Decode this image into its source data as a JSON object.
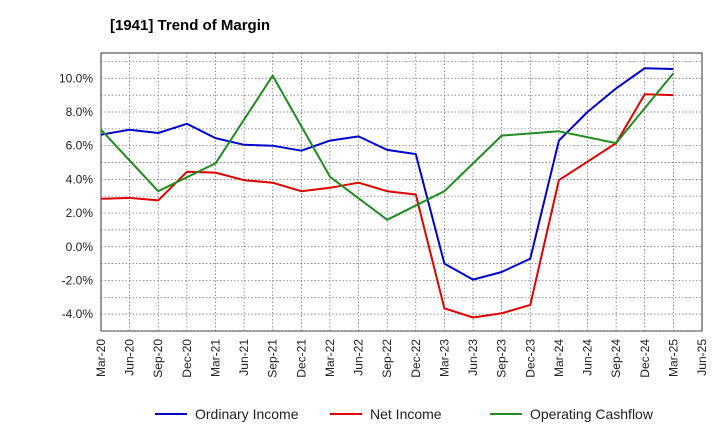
{
  "chart_data": {
    "type": "line",
    "title": "[1941]  Trend of Margin",
    "xlabel": "",
    "ylabel": "",
    "x": [
      "Mar-20",
      "Jun-20",
      "Sep-20",
      "Dec-20",
      "Mar-21",
      "Jun-21",
      "Sep-21",
      "Dec-21",
      "Mar-22",
      "Jun-22",
      "Sep-22",
      "Dec-22",
      "Mar-23",
      "Jun-23",
      "Sep-23",
      "Dec-23",
      "Mar-24",
      "Jun-24",
      "Sep-24",
      "Dec-24",
      "Mar-25"
    ],
    "x_ticks": [
      "Mar-20",
      "Jun-20",
      "Sep-20",
      "Dec-20",
      "Mar-21",
      "Jun-21",
      "Sep-21",
      "Dec-21",
      "Mar-22",
      "Jun-22",
      "Sep-22",
      "Dec-22",
      "Mar-23",
      "Jun-23",
      "Sep-23",
      "Dec-23",
      "Mar-24",
      "Jun-24",
      "Sep-24",
      "Dec-24",
      "Mar-25",
      "Jun-25"
    ],
    "y_ticks": [
      "-4.0%",
      "-2.0%",
      "0.0%",
      "2.0%",
      "4.0%",
      "6.0%",
      "8.0%",
      "10.0%"
    ],
    "y_tick_values": [
      -4,
      -2,
      0,
      2,
      4,
      6,
      8,
      10
    ],
    "ylim": [
      -5.0,
      11.5
    ],
    "grid": true,
    "legend_position": "bottom",
    "series": [
      {
        "name": "Ordinary Income",
        "color": "#0000cc",
        "values": [
          6.65,
          6.95,
          6.75,
          7.3,
          6.45,
          6.05,
          6.0,
          5.7,
          6.3,
          6.55,
          5.75,
          5.5,
          -1.0,
          -1.95,
          -1.5,
          -0.7,
          6.3,
          8.0,
          9.4,
          10.6,
          10.55
        ]
      },
      {
        "name": "Net Income",
        "color": "#dd0000",
        "values": [
          2.85,
          2.9,
          2.75,
          4.45,
          4.4,
          3.95,
          3.8,
          3.3,
          3.5,
          3.8,
          3.3,
          3.1,
          -3.65,
          -4.2,
          -3.95,
          -3.45,
          3.95,
          5.05,
          6.15,
          9.05,
          9.0
        ]
      },
      {
        "name": "Operating Cashflow",
        "color": "#228b22",
        "values": [
          6.95,
          null,
          3.3,
          null,
          4.95,
          null,
          10.15,
          null,
          4.15,
          null,
          1.6,
          null,
          3.3,
          null,
          6.6,
          null,
          6.85,
          null,
          6.15,
          null,
          10.3
        ]
      }
    ]
  }
}
